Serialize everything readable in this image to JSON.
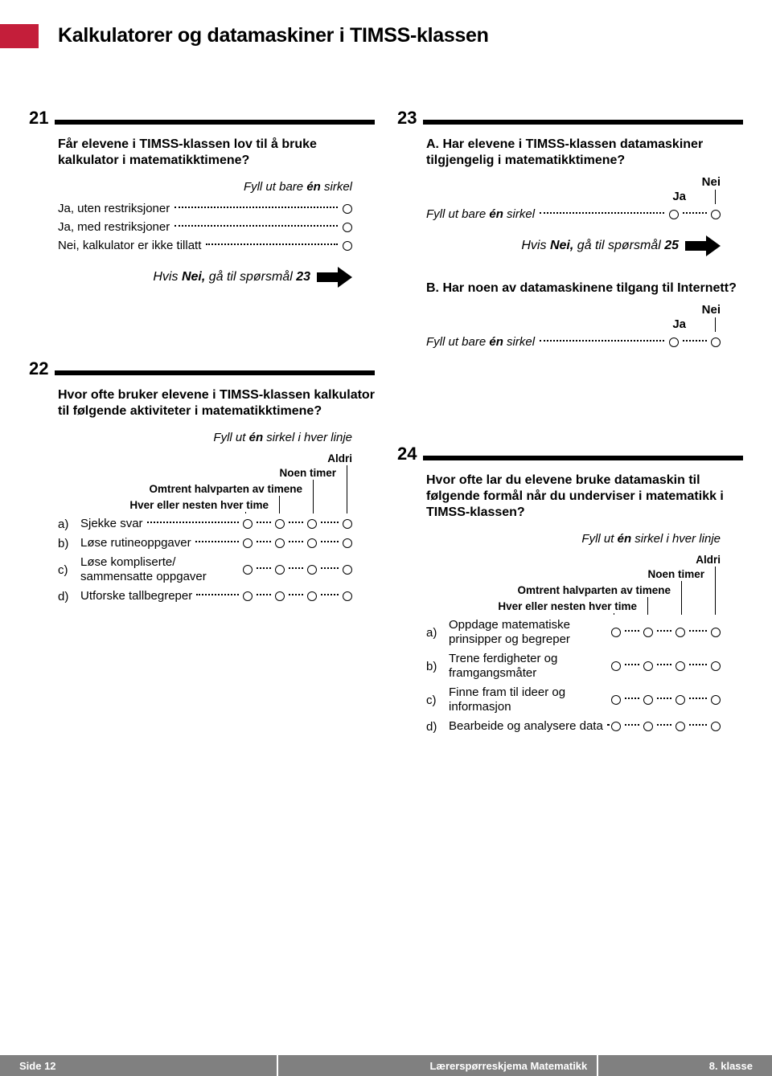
{
  "colors": {
    "accent": "#c41e3a",
    "footer_bg": "#808080",
    "footer_text": "#ffffff",
    "text": "#000000",
    "background": "#ffffff"
  },
  "header": {
    "title": "Kalkulatorer og datamaskiner i TIMSS-klassen"
  },
  "q21": {
    "num": "21",
    "text": "Får elevene i TIMSS-klassen lov til å bruke kalkulator i matematikktimene?",
    "instr_pre": "Fyll ut bare ",
    "instr_bold": "én",
    "instr_post": " sirkel",
    "opts": [
      "Ja, uten restriksjoner",
      "Ja, med restriksjoner",
      "Nei, kalkulator er ikke tillatt"
    ],
    "skip_pre": "Hvis ",
    "skip_bold": "Nei,",
    "skip_post": " gå til spørsmål ",
    "skip_target": "23"
  },
  "q22": {
    "num": "22",
    "text": "Hvor ofte bruker elevene i TIMSS-klassen kalkulator til følgende aktiviteter i matematikktimene?",
    "instr_pre": "Fyll ut ",
    "instr_bold": "én",
    "instr_post": " sirkel i hver linje",
    "cols": {
      "c1": "Hver eller nesten hver time",
      "c2": "Omtrent halvparten av timene",
      "c3": "Noen timer",
      "c4": "Aldri"
    },
    "rows": [
      {
        "letter": "a)",
        "label": "Sjekke svar"
      },
      {
        "letter": "b)",
        "label": "Løse rutineoppgaver"
      },
      {
        "letter": "c)",
        "label": "Løse kompliserte/ sammensatte oppgaver"
      },
      {
        "letter": "d)",
        "label": "Utforske tallbegreper"
      }
    ]
  },
  "q23": {
    "num": "23",
    "a_label": "A.",
    "a_text": "Har elevene i TIMSS-klassen datamaskiner tilgjengelig i matematikktimene?",
    "b_label": "B.",
    "b_text": "Har noen av datamaskinene tilgang til Internett?",
    "ja": "Ja",
    "nei": "Nei",
    "instr_pre": "Fyll ut bare ",
    "instr_bold": "én",
    "instr_post": " sirkel",
    "skip_pre": "Hvis ",
    "skip_bold": "Nei,",
    "skip_post": " gå til spørsmål ",
    "skip_target": "25"
  },
  "q24": {
    "num": "24",
    "text": "Hvor ofte lar du elevene bruke datamaskin til følgende formål når du underviser i matematikk i TIMSS-klassen?",
    "instr_pre": "Fyll ut ",
    "instr_bold": "én",
    "instr_post": " sirkel i hver linje",
    "cols": {
      "c1": "Hver eller nesten hver time",
      "c2": "Omtrent halvparten av timene",
      "c3": "Noen timer",
      "c4": "Aldri"
    },
    "rows": [
      {
        "letter": "a)",
        "label": "Oppdage matematiske prinsipper og begreper"
      },
      {
        "letter": "b)",
        "label": "Trene ferdigheter og framgangsmåter"
      },
      {
        "letter": "c)",
        "label": "Finne fram til ideer og informasjon"
      },
      {
        "letter": "d)",
        "label": "Bearbeide og analysere data"
      }
    ]
  },
  "footer": {
    "left": "Side 12",
    "center": "Lærerspørreskjema Matematikk",
    "right": "8. klasse"
  }
}
